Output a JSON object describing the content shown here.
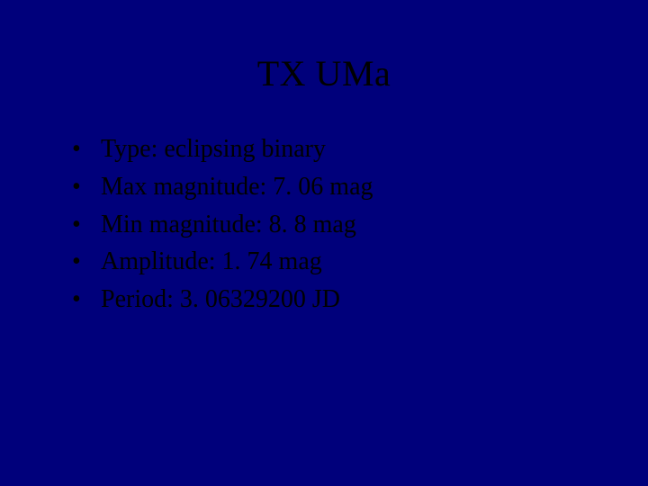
{
  "slide": {
    "background_color": "#00007b",
    "text_color": "#000000",
    "font_family": "Times New Roman",
    "title": "TX UMa",
    "title_fontsize": 40,
    "bullet_fontsize": 28,
    "bullets": [
      "Type: eclipsing binary",
      "Max magnitude: 7. 06 mag",
      "Min magnitude: 8. 8 mag",
      "Amplitude: 1. 74 mag",
      "Period: 3. 06329200 JD"
    ]
  }
}
